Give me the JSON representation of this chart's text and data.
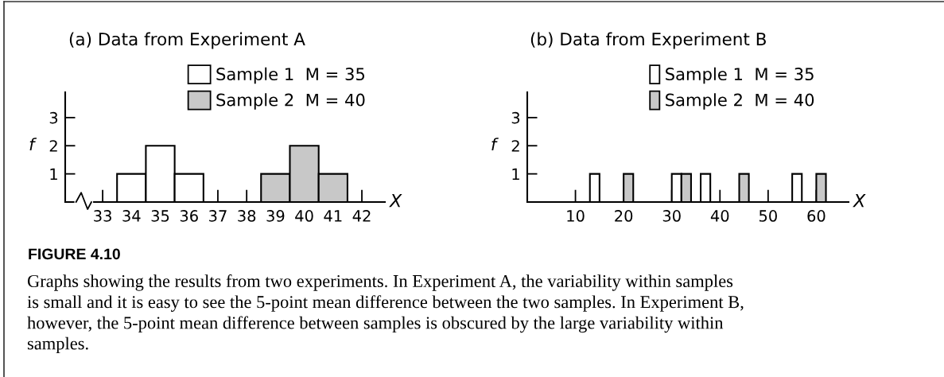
{
  "chart_data": [
    {
      "type": "histogram",
      "title": "(a) Data from Experiment A",
      "xlabel": "X",
      "ylabel": "f",
      "bins": [
        33.5,
        34.5,
        35.5,
        36.5,
        37.5,
        38.5,
        39.5,
        40.5,
        41.5
      ],
      "series": [
        {
          "name": "Sample 1  M = 35",
          "color": "#ffffff",
          "values": [
            1,
            2,
            1,
            0,
            0,
            0,
            0,
            0
          ]
        },
        {
          "name": "Sample 2  M = 40",
          "color": "#c8c8c8",
          "values": [
            0,
            0,
            0,
            0,
            0,
            1,
            2,
            1
          ]
        }
      ],
      "xlim": [
        31.7,
        42.8
      ],
      "xticks": [
        33,
        34,
        35,
        36,
        37,
        38,
        39,
        40,
        41,
        42
      ],
      "ylim": [
        0,
        3.9
      ],
      "yticks": [
        1,
        2,
        3
      ],
      "legend": "top right",
      "annotations": [
        "FIGURE 4.10",
        "Graphs showing the results from two experiments. In Experiment A, the variability within samples is small and it is easy to see the 5-point mean difference between the two samples. In Experiment B, however, the 5-point mean difference between samples is obscured by the large variability within samples."
      ]
    },
    {
      "type": "histogram",
      "title": "(b) Data from Experiment B",
      "xlabel": "X",
      "ylabel": "f",
      "bins": [
        13,
        15,
        20,
        22,
        30,
        32,
        34,
        36,
        38,
        44,
        46,
        55,
        57,
        60,
        62
      ],
      "series": [
        {
          "name": "Sample 1  M = 35",
          "color": "#ffffff",
          "values": [
            1,
            0,
            0,
            0,
            1,
            0,
            0,
            1,
            0,
            0,
            0,
            1,
            0,
            0
          ]
        },
        {
          "name": "Sample 2  M = 40",
          "color": "#c8c8c8",
          "values": [
            0,
            0,
            1,
            0,
            0,
            1,
            0,
            0,
            0,
            1,
            0,
            0,
            0,
            1
          ]
        }
      ],
      "xlim": [
        0,
        66.7
      ],
      "xticks": [
        10,
        20,
        30,
        40,
        50,
        60
      ],
      "ylim": [
        0,
        3.9
      ],
      "yticks": [
        1,
        2,
        3
      ],
      "legend": "top right"
    }
  ]
}
